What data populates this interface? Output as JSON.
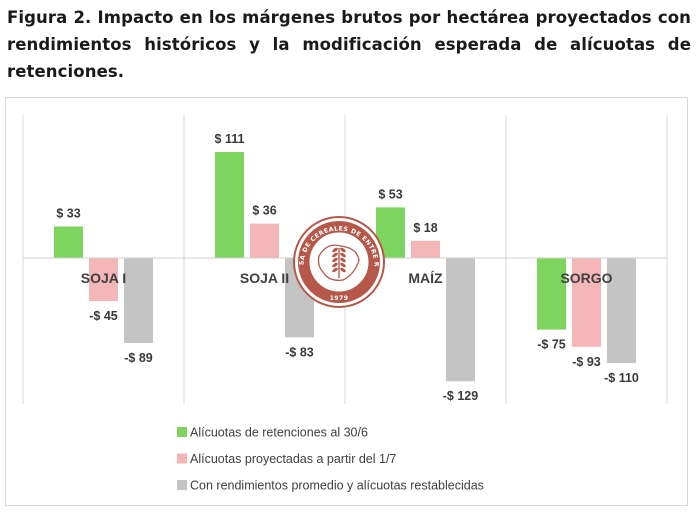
{
  "caption": "Figura 2. Impacto en los márgenes brutos por hectárea proyectados con rendimientos históricos y la modificación esperada de alícuotas de retenciones.",
  "chart_data": {
    "type": "bar",
    "categories": [
      "SOJA I",
      "SOJA II",
      "MAÍZ",
      "SORGO"
    ],
    "series": [
      {
        "name": "Alícuotas de retenciones al 30/6",
        "color": "#7dd45f",
        "values": [
          33,
          111,
          53,
          -75
        ],
        "labels": [
          "$ 33",
          "$ 111",
          "$ 53",
          "-$ 75"
        ]
      },
      {
        "name": "Alícuotas proyectadas a partir del 1/7",
        "color": "#f4b6b6",
        "values": [
          -45,
          36,
          18,
          -93
        ],
        "labels": [
          "-$ 45",
          "$ 36",
          "$ 18",
          "-$ 93"
        ]
      },
      {
        "name": "Con rendimientos promedio y alícuotas restablecidas",
        "color": "#c4c4c4",
        "values": [
          -89,
          -83,
          -129,
          -110
        ],
        "labels": [
          "-$ 89",
          "-$ 83",
          "-$ 129",
          "-$ 110"
        ]
      }
    ],
    "ylim": [
      -129,
      111
    ],
    "grid": false,
    "legend_position": "bottom-left"
  },
  "watermark": {
    "ring_text": "BOLSA DE CEREALES DE ENTRE RÍOS",
    "year": "1979",
    "color": "#b5584a"
  }
}
